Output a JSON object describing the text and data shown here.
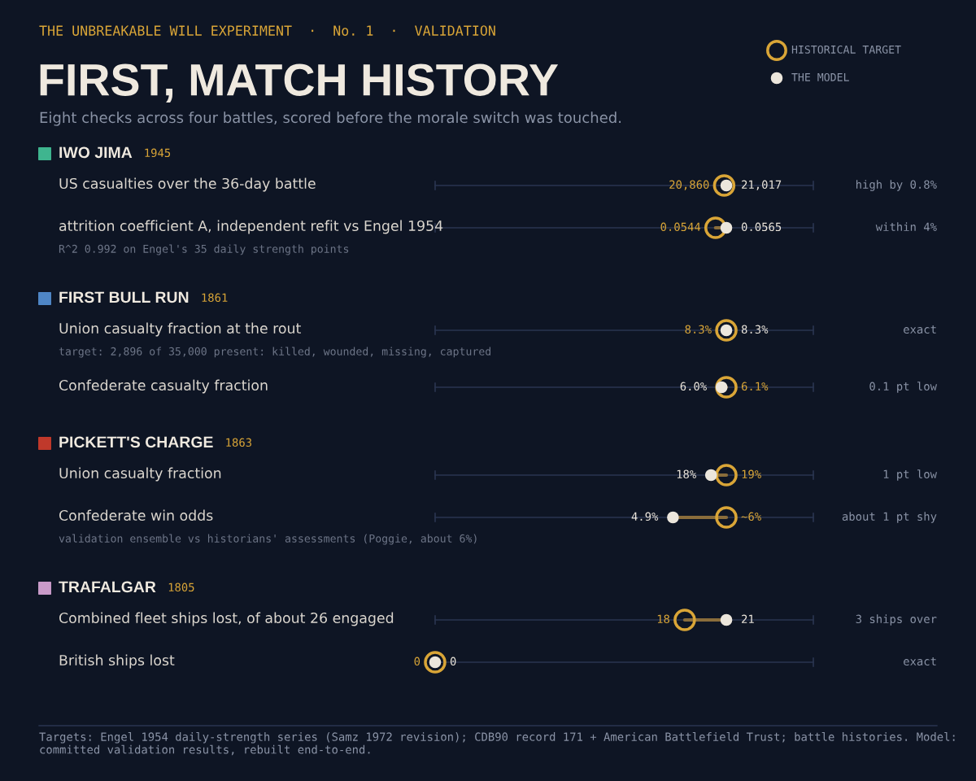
{
  "chart_data": {
    "type": "other",
    "title": "FIRST, MATCH HISTORY",
    "subtitle": "Eight checks across four battles, scored before the morale switch was touched.",
    "categories": [
      "US casualties over the 36-day battle",
      "attrition coefficient A, independent refit vs Engel 1954",
      "Union casualty fraction at the rout",
      "Confederate casualty fraction",
      "Union casualty fraction",
      "Confederate win odds",
      "Combined fleet ships lost, of about 26 engaged",
      "British ships lost"
    ],
    "series": [
      {
        "name": "HISTORICAL TARGET",
        "color": "#d9a537",
        "values": [
          20860,
          0.0544,
          8.3,
          6.1,
          19,
          6,
          18,
          0
        ],
        "value_labels": [
          "20,860",
          "0.0544",
          "8.3%",
          "6.1%",
          "19%",
          "~6%",
          "18",
          "0"
        ]
      },
      {
        "name": "THE MODEL",
        "color": "#ece6dc",
        "values": [
          21017,
          0.0565,
          8.3,
          6.0,
          18,
          4.9,
          21,
          0
        ],
        "value_labels": [
          "21,017",
          "0.0565",
          "8.3%",
          "6.0%",
          "18%",
          "4.9%",
          "21",
          "0"
        ]
      }
    ],
    "legend": "top right",
    "annotations": [
      "THE UNBREAKABLE WILL EXPERIMENT  ·  No. 1  ·  VALIDATION",
      "IWO JIMA",
      "1945",
      "high by 0.8%",
      "within 4%",
      "R^2 0.992 on Engel's 35 daily strength points",
      "FIRST BULL RUN",
      "1861",
      "exact",
      "target: 2,896 of 35,000 present: killed, wounded, missing, captured",
      "0.1 pt low",
      "PICKETT'S CHARGE",
      "1863",
      "1 pt low",
      "about 1 pt shy",
      "validation ensemble vs historians' assessments (Poggie, about 6%)",
      "TRAFALGAR",
      "1805",
      "3 ships over",
      "exact",
      "Targets: Engel 1954 daily-strength series (Samz 1972 revision); CDB90 record 171 + American Battlefield Trust; battle histories. Model: committed validation results, rebuilt end-to-end."
    ]
  }
}
